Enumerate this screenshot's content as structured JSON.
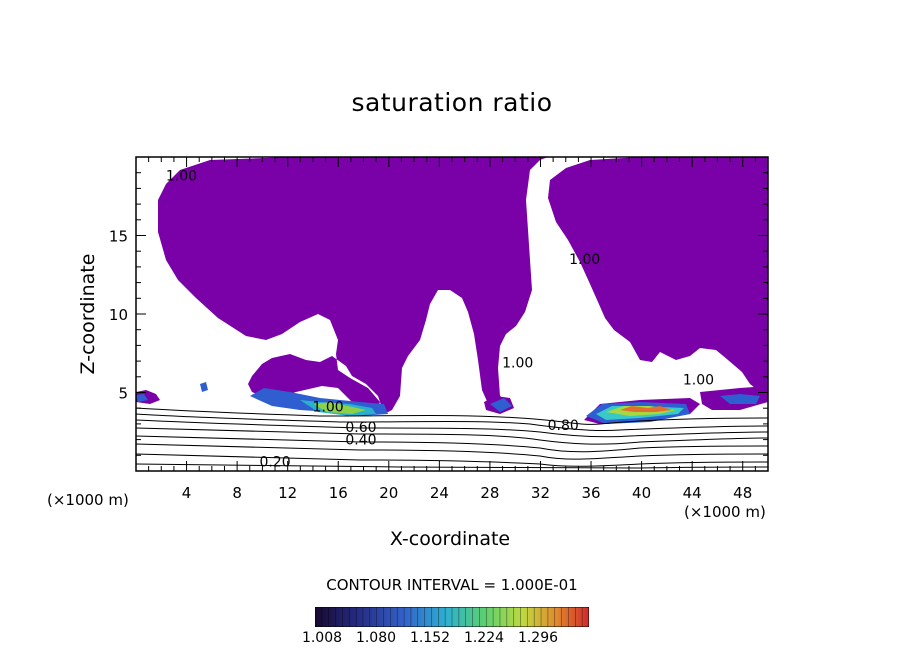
{
  "chart_data": {
    "type": "contour",
    "title": "saturation ratio",
    "xlabel": "X-coordinate",
    "ylabel": "Z-coordinate",
    "x_unit": "(×1000 m)",
    "xlim": [
      0,
      50
    ],
    "ylim": [
      0,
      20
    ],
    "x_ticks": [
      "4",
      "8",
      "12",
      "16",
      "20",
      "24",
      "28",
      "32",
      "36",
      "40",
      "44",
      "48"
    ],
    "y_ticks": [
      "5",
      "10",
      "15"
    ],
    "contour_interval_text": "CONTOUR INTERVAL = 1.000E-01",
    "contour_labels": [
      {
        "text": "1.00",
        "x": 3.6,
        "y": 18.5
      },
      {
        "text": "1.00",
        "x": 35.5,
        "y": 13.2
      },
      {
        "text": "1.00",
        "x": 30.2,
        "y": 6.6
      },
      {
        "text": "1.00",
        "x": 44.5,
        "y": 5.5
      },
      {
        "text": "1.00",
        "x": 15.2,
        "y": 3.8
      },
      {
        "text": "0.60",
        "x": 17.8,
        "y": 2.5
      },
      {
        "text": "0.40",
        "x": 17.8,
        "y": 1.7
      },
      {
        "text": "0.80",
        "x": 33.8,
        "y": 2.6
      },
      {
        "text": "0.20",
        "x": 11.0,
        "y": 0.3
      }
    ],
    "colorbar": {
      "labels": [
        "1.008",
        "1.080",
        "1.152",
        "1.224",
        "1.296"
      ],
      "colors": [
        "#1a0a3a",
        "#2a2a8a",
        "#3355cc",
        "#2ea6d6",
        "#45c8a8",
        "#6bd45c",
        "#b8d83a",
        "#e0c030",
        "#e07a30",
        "#d23a2a"
      ]
    },
    "fill_color": "#7a00a8"
  }
}
